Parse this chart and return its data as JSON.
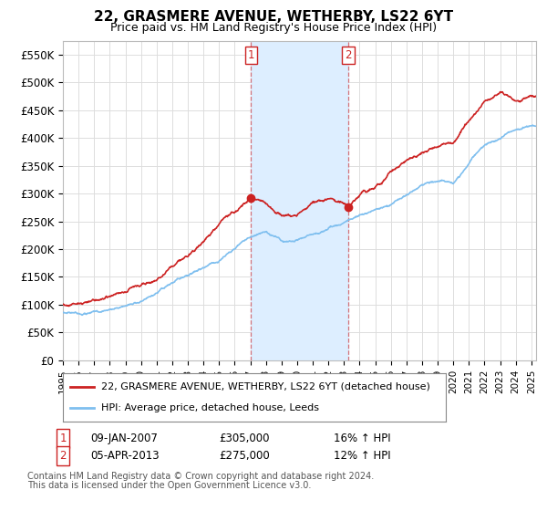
{
  "title": "22, GRASMERE AVENUE, WETHERBY, LS22 6YT",
  "subtitle": "Price paid vs. HM Land Registry's House Price Index (HPI)",
  "ylim": [
    0,
    575000
  ],
  "yticks": [
    0,
    50000,
    100000,
    150000,
    200000,
    250000,
    300000,
    350000,
    400000,
    450000,
    500000,
    550000
  ],
  "ytick_labels": [
    "£0",
    "£50K",
    "£100K",
    "£150K",
    "£200K",
    "£250K",
    "£300K",
    "£350K",
    "£400K",
    "£450K",
    "£500K",
    "£550K"
  ],
  "hpi_color": "#7fbfef",
  "price_color": "#cc2222",
  "background_color": "#ffffff",
  "grid_color": "#dddddd",
  "shade_color": "#ddeeff",
  "transaction1_date": "09-JAN-2007",
  "transaction1_price": "£305,000",
  "transaction1_hpi": "16% ↑ HPI",
  "transaction1_x": 2007.05,
  "transaction2_date": "05-APR-2013",
  "transaction2_price": "£275,000",
  "transaction2_hpi": "12% ↑ HPI",
  "transaction2_x": 2013.27,
  "legend_label1": "22, GRASMERE AVENUE, WETHERBY, LS22 6YT (detached house)",
  "legend_label2": "HPI: Average price, detached house, Leeds",
  "footnote1": "Contains HM Land Registry data © Crown copyright and database right 2024.",
  "footnote2": "This data is licensed under the Open Government Licence v3.0.",
  "xstart": 1995.0,
  "xend": 2025.3,
  "hpi_anchors_x": [
    1995,
    1996,
    1997,
    1998,
    1999,
    2000,
    2001,
    2002,
    2003,
    2004,
    2005,
    2006,
    2007,
    2008,
    2009,
    2010,
    2011,
    2012,
    2013,
    2014,
    2015,
    2016,
    2017,
    2018,
    2019,
    2020,
    2021,
    2022,
    2023,
    2024,
    2025.3
  ],
  "hpi_anchors_y": [
    85000,
    88000,
    91000,
    96000,
    103000,
    113000,
    122000,
    133000,
    148000,
    165000,
    180000,
    200000,
    220000,
    230000,
    215000,
    215000,
    220000,
    228000,
    240000,
    255000,
    265000,
    278000,
    295000,
    310000,
    315000,
    310000,
    345000,
    380000,
    395000,
    415000,
    425000
  ],
  "price_anchors_x": [
    1995,
    1996,
    1997,
    1998,
    1999,
    2000,
    2001,
    2002,
    2003,
    2004,
    2005,
    2006,
    2007.05,
    2008,
    2009,
    2010,
    2011,
    2012,
    2013.27,
    2014,
    2015,
    2016,
    2017,
    2018,
    2019,
    2020,
    2021,
    2022,
    2023,
    2024,
    2025.3
  ],
  "price_anchors_y": [
    100000,
    103000,
    107000,
    112000,
    120000,
    134000,
    148000,
    168000,
    190000,
    218000,
    248000,
    278000,
    305000,
    295000,
    270000,
    265000,
    280000,
    290000,
    275000,
    295000,
    315000,
    335000,
    360000,
    385000,
    390000,
    395000,
    435000,
    465000,
    480000,
    465000,
    480000
  ]
}
